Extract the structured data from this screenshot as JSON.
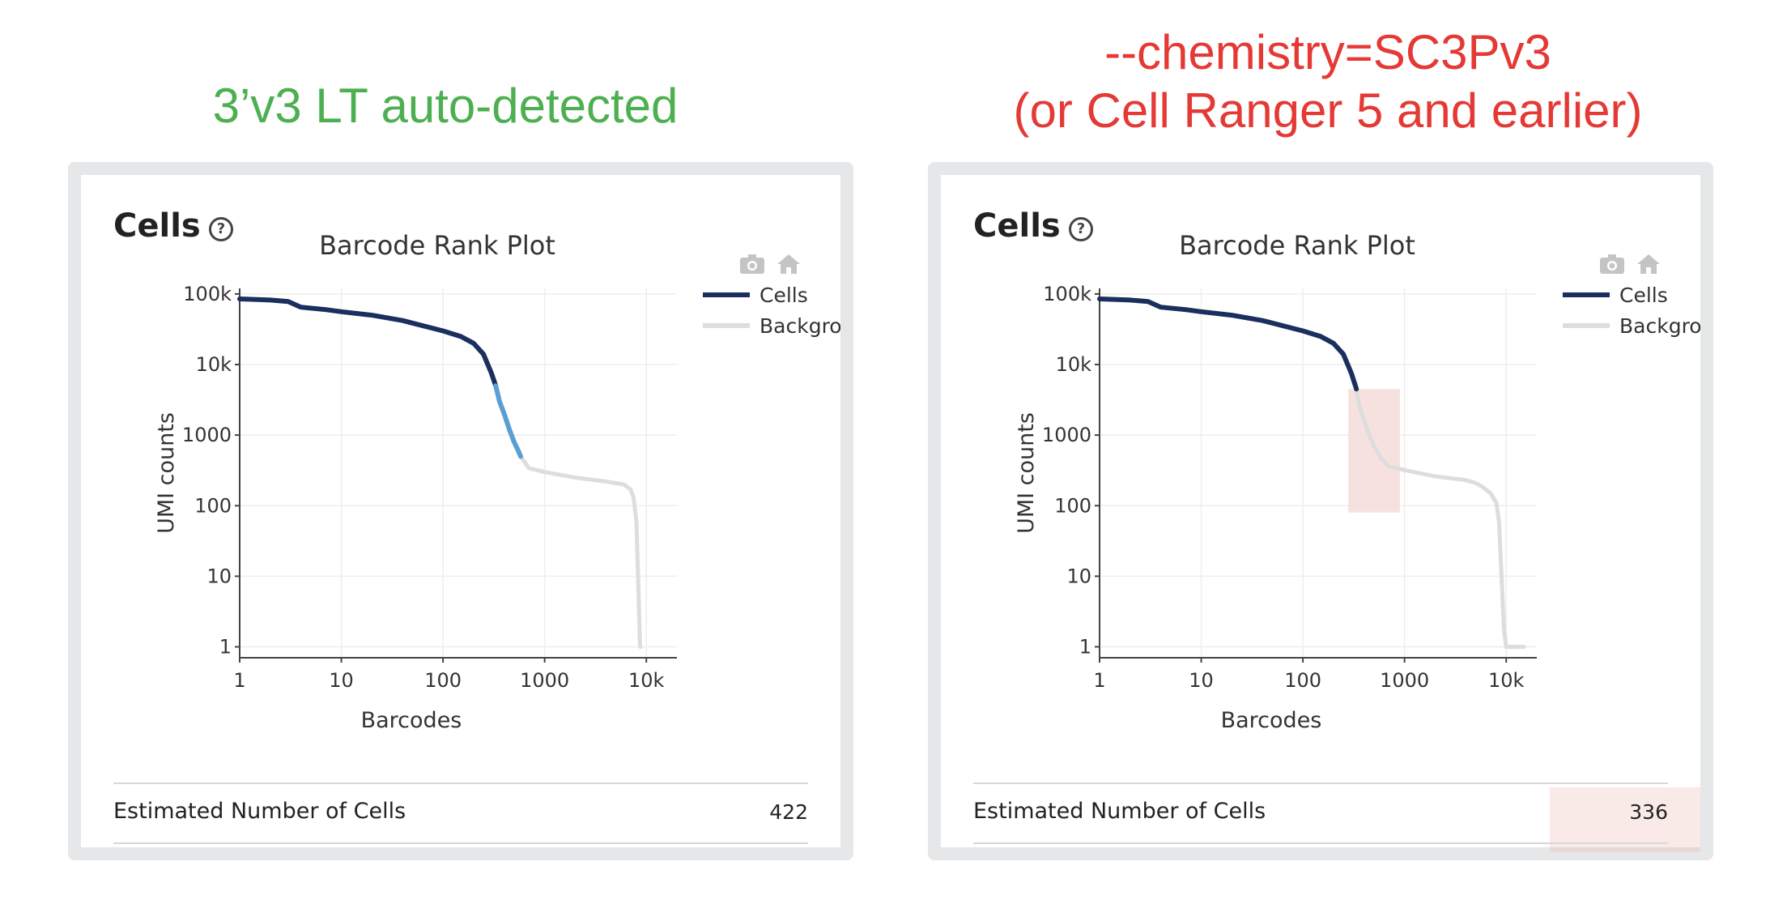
{
  "headings": {
    "left": "3’v3 LT auto-detected",
    "right_line1": "--chemistry=SC3Pv3",
    "right_line2": "(or Cell Ranger 5 and earlier)",
    "left_color": "#4caf50",
    "right_color": "#e53935"
  },
  "panels": [
    {
      "section_title": "Cells",
      "help_icon": "question-circle-icon",
      "toolbar_icons": [
        "camera-icon",
        "home-icon"
      ],
      "summary_label": "Estimated Number of Cells",
      "summary_value": "422"
    },
    {
      "section_title": "Cells",
      "help_icon": "question-circle-icon",
      "toolbar_icons": [
        "camera-icon",
        "home-icon"
      ],
      "summary_label": "Estimated Number of Cells",
      "summary_value": "336"
    }
  ],
  "chart_data": [
    {
      "type": "line",
      "title": "Barcode Rank Plot",
      "xlabel": "Barcodes",
      "ylabel": "UMI counts",
      "x_scale": "log",
      "y_scale": "log",
      "xlim": [
        1,
        20000
      ],
      "ylim": [
        0.7,
        120000
      ],
      "x_ticks": [
        "1",
        "10",
        "100",
        "1000",
        "10k"
      ],
      "y_ticks": [
        "1",
        "10",
        "100",
        "1000",
        "10k",
        "100k"
      ],
      "grid": true,
      "legend_position": "top-right",
      "series": [
        {
          "name": "Cells",
          "color": "#1b2f5e",
          "x": [
            1,
            2,
            3,
            4,
            7,
            10,
            20,
            40,
            100,
            150,
            200,
            250,
            300,
            330
          ],
          "y": [
            85000,
            82000,
            78000,
            65000,
            60000,
            56000,
            50000,
            42000,
            30000,
            25000,
            20000,
            14000,
            7500,
            5000
          ]
        },
        {
          "name": "",
          "color": "#5a9fd4",
          "x": [
            330,
            360,
            400,
            450,
            500,
            550,
            580
          ],
          "y": [
            5000,
            3000,
            2000,
            1200,
            800,
            600,
            500
          ]
        },
        {
          "name": "Background",
          "color": "#dddddd",
          "x": [
            580,
            700,
            1000,
            2000,
            4000,
            6000,
            7000,
            7500,
            8000,
            8300,
            8500,
            8600,
            8700,
            8800
          ],
          "y": [
            500,
            340,
            300,
            250,
            220,
            200,
            170,
            130,
            60,
            10,
            3,
            1.5,
            1,
            1
          ]
        }
      ]
    },
    {
      "type": "line",
      "title": "Barcode Rank Plot",
      "xlabel": "Barcodes",
      "ylabel": "UMI counts",
      "x_scale": "log",
      "y_scale": "log",
      "xlim": [
        1,
        20000
      ],
      "ylim": [
        0.7,
        120000
      ],
      "x_ticks": [
        "1",
        "10",
        "100",
        "1000",
        "10k"
      ],
      "y_ticks": [
        "1",
        "10",
        "100",
        "1000",
        "10k",
        "100k"
      ],
      "grid": true,
      "legend_position": "top-right",
      "highlight_region": {
        "x": [
          280,
          900
        ],
        "y": [
          80,
          4500
        ],
        "color": "#f6dcd8"
      },
      "series": [
        {
          "name": "Cells",
          "color": "#1b2f5e",
          "x": [
            1,
            2,
            3,
            4,
            7,
            10,
            20,
            40,
            100,
            150,
            200,
            250,
            300,
            336
          ],
          "y": [
            85000,
            82000,
            78000,
            65000,
            60000,
            56000,
            50000,
            42000,
            30000,
            25000,
            20000,
            14000,
            7500,
            4500
          ]
        },
        {
          "name": "Background",
          "color": "#dddddd",
          "x": [
            336,
            360,
            400,
            450,
            500,
            600,
            700,
            1000,
            2000,
            4000,
            5000,
            6000,
            7000,
            8000,
            8500,
            9000,
            9500,
            10000,
            15000
          ],
          "y": [
            4500,
            2600,
            1600,
            1000,
            700,
            450,
            360,
            320,
            260,
            230,
            210,
            180,
            150,
            110,
            60,
            10,
            1.8,
            1,
            1
          ]
        }
      ]
    }
  ]
}
